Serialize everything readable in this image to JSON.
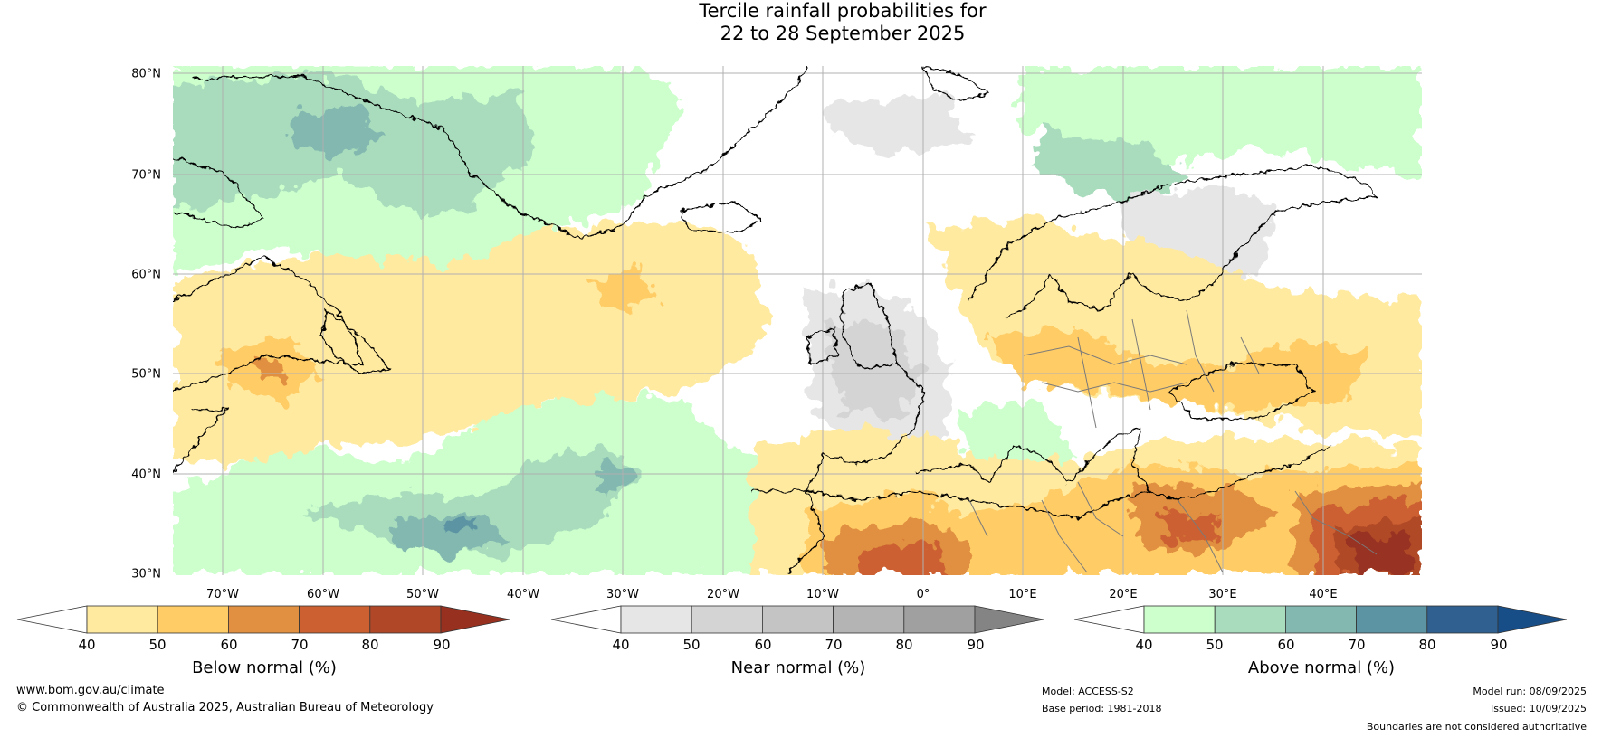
{
  "title": {
    "line1": "Tercile rainfall probabilities for",
    "line2": "22 to 28 September 2025"
  },
  "map": {
    "lat_labels": [
      "80°N",
      "70°N",
      "60°N",
      "50°N",
      "40°N",
      "30°N"
    ],
    "lon_labels": [
      "70°W",
      "60°W",
      "50°W",
      "40°W",
      "30°W",
      "20°W",
      "10°W",
      "0°",
      "10°E",
      "20°E",
      "30°E",
      "40°E"
    ],
    "extent": {
      "lon": [
        -75,
        50
      ],
      "lat": [
        30,
        80
      ]
    },
    "gridlines": true
  },
  "colorbars": [
    {
      "id": "below",
      "label": "Below normal (%)",
      "ticks": [
        "40",
        "50",
        "60",
        "70",
        "80",
        "90"
      ],
      "colors": [
        "#ffffff",
        "#ffeaa0",
        "#ffcc66",
        "#e09040",
        "#cc6030",
        "#b04828",
        "#983020"
      ]
    },
    {
      "id": "near",
      "label": "Near normal (%)",
      "ticks": [
        "40",
        "50",
        "60",
        "70",
        "80",
        "90"
      ],
      "colors": [
        "#ffffff",
        "#e6e6e6",
        "#d4d4d4",
        "#c4c4c4",
        "#b4b4b4",
        "#a0a0a0",
        "#848484"
      ]
    },
    {
      "id": "above",
      "label": "Above normal (%)",
      "ticks": [
        "40",
        "50",
        "60",
        "70",
        "80",
        "90"
      ],
      "colors": [
        "#ffffff",
        "#ccffcc",
        "#a8dcbc",
        "#82b8b0",
        "#5c94a4",
        "#306090",
        "#174e88"
      ]
    }
  ],
  "footer": {
    "website": "www.bom.gov.au/climate",
    "copyright": "© Commonwealth of Australia 2025, Australian Bureau of Meteorology",
    "model": "Model: ACCESS-S2",
    "base_period": "Base period: 1981-2018",
    "model_run": "Model run: 08/09/2025",
    "issued": "Issued: 10/09/2025",
    "disclaimer": "Boundaries are not considered authoritative"
  }
}
